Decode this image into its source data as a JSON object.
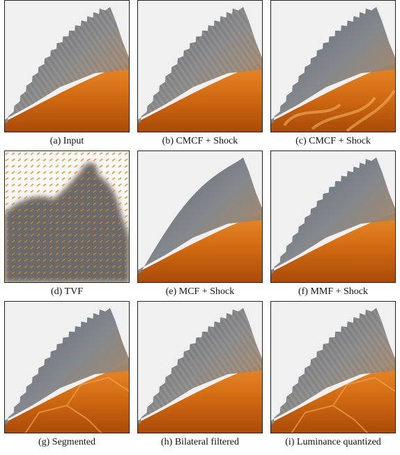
{
  "figure": {
    "panels": [
      {
        "caption": "(a) Input"
      },
      {
        "caption": "(b) CMCF + Shock"
      },
      {
        "caption": "(c) CMCF + Shock"
      },
      {
        "caption": "(d) TVF"
      },
      {
        "caption": "(e) MCF + Shock"
      },
      {
        "caption": "(f) MMF + Shock"
      },
      {
        "caption": "(g) Segmented"
      },
      {
        "caption": "(h) Bilateral filtered"
      },
      {
        "caption": "(i) Luminance quantized"
      }
    ]
  }
}
